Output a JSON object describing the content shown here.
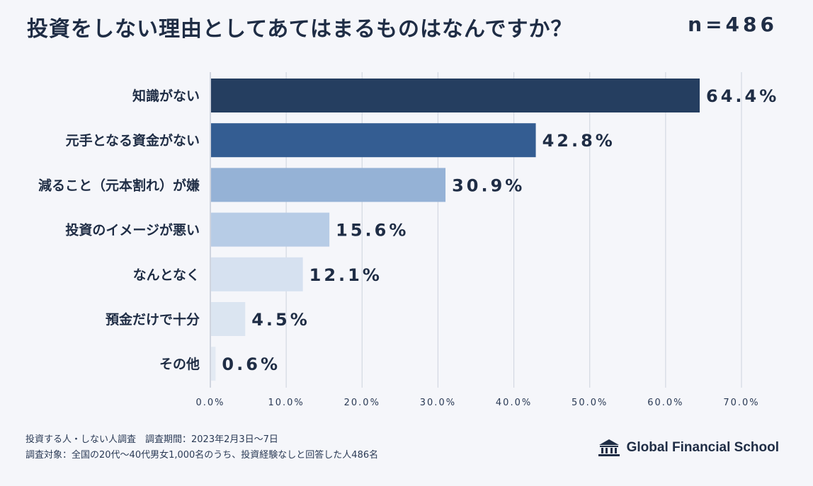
{
  "header": {
    "title": "投資をしない理由としてあてはまるものはなんですか？",
    "n_label": "n=486"
  },
  "chart_data": {
    "type": "bar",
    "orientation": "horizontal",
    "categories": [
      "知識がない",
      "元手となる資金がない",
      "減ること（元本割れ）が嫌",
      "投資のイメージが悪い",
      "なんとなく",
      "預金だけで十分",
      "その他"
    ],
    "values": [
      64.4,
      42.8,
      30.9,
      15.6,
      12.1,
      4.5,
      0.6
    ],
    "value_labels": [
      "64.4%",
      "42.8%",
      "30.9%",
      "15.6%",
      "12.1%",
      "4.5%",
      "0.6%"
    ],
    "bar_colors": [
      "#253e60",
      "#345d92",
      "#95b2d6",
      "#b7cce6",
      "#d6e1f0",
      "#dbe5f1",
      "#e3eaf3"
    ],
    "xlim": [
      0,
      70
    ],
    "x_ticks": [
      0,
      10,
      20,
      30,
      40,
      50,
      60,
      70
    ],
    "x_tick_labels": [
      "0.0%",
      "10.0%",
      "20.0%",
      "30.0%",
      "40.0%",
      "50.0%",
      "60.0%",
      "70.0%"
    ],
    "grid": true
  },
  "footer": {
    "line1": "投資する人・しない人調査　調査期間：2023年2月3日〜7日",
    "line2": "調査対象：全国の20代〜40代男女1,000名のうち、投資経験なしと回答した人486名"
  },
  "logo": {
    "text": "Global Financial School",
    "icon": "school-building-icon"
  }
}
